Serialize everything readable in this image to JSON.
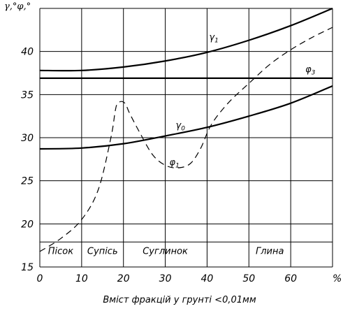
{
  "chart_data": {
    "type": "line",
    "ylabel": "γ,°φ,°",
    "xlabel": "Вміст фракцій у грунті  <0,01мм",
    "x_unit": "%",
    "xlim": [
      0,
      70
    ],
    "ylim": [
      15,
      45
    ],
    "x_ticks": [
      0,
      10,
      20,
      30,
      40,
      50,
      60
    ],
    "y_ticks": [
      15,
      20,
      25,
      30,
      35,
      40
    ],
    "grid": true,
    "soil_zones": [
      {
        "label": "Пісок",
        "x_from": 0,
        "x_to": 10
      },
      {
        "label": "Супісь",
        "x_from": 10,
        "x_to": 20
      },
      {
        "label": "Суглинок",
        "x_from": 20,
        "x_to": 40
      },
      {
        "label": "Глина",
        "x_from": 40,
        "x_to": 70
      }
    ],
    "series": [
      {
        "name": "γ1",
        "label_main": "γ",
        "label_sub": "1",
        "style": "solid",
        "label_at": [
          40.5,
          41.3
        ],
        "points": [
          [
            0,
            37.8
          ],
          [
            10,
            37.8
          ],
          [
            20,
            38.2
          ],
          [
            30,
            38.9
          ],
          [
            40,
            39.9
          ],
          [
            50,
            41.3
          ],
          [
            60,
            43.0
          ],
          [
            70,
            45.0
          ]
        ]
      },
      {
        "name": "φ3",
        "label_main": "φ",
        "label_sub": "3",
        "style": "solid",
        "label_at": [
          63.5,
          37.6
        ],
        "points": [
          [
            0,
            36.9
          ],
          [
            70,
            36.9
          ]
        ]
      },
      {
        "name": "γ0",
        "label_main": "γ",
        "label_sub": "0",
        "style": "solid",
        "label_at": [
          32.5,
          31.1
        ],
        "points": [
          [
            0,
            28.7
          ],
          [
            10,
            28.8
          ],
          [
            20,
            29.3
          ],
          [
            30,
            30.2
          ],
          [
            40,
            31.2
          ],
          [
            50,
            32.5
          ],
          [
            60,
            34.0
          ],
          [
            70,
            36.0
          ]
        ]
      },
      {
        "name": "φ1",
        "label_main": "φ",
        "label_sub": "1",
        "style": "dashed",
        "label_at": [
          31.0,
          26.8
        ],
        "points": [
          [
            0,
            16.8
          ],
          [
            5,
            18.3
          ],
          [
            10,
            20.5
          ],
          [
            14,
            24.0
          ],
          [
            17,
            30.0
          ],
          [
            18,
            33.0
          ],
          [
            18.5,
            33.9
          ],
          [
            19.5,
            34.2
          ],
          [
            20.5,
            33.9
          ],
          [
            21.5,
            32.8
          ],
          [
            24,
            30.5
          ],
          [
            27,
            28.0
          ],
          [
            30,
            26.8
          ],
          [
            33,
            26.5
          ],
          [
            36,
            27.0
          ],
          [
            38.5,
            28.8
          ],
          [
            41,
            31.5
          ],
          [
            45,
            34.0
          ],
          [
            50,
            36.3
          ],
          [
            55,
            38.5
          ],
          [
            60,
            40.2
          ],
          [
            65,
            41.6
          ],
          [
            70,
            42.8
          ]
        ]
      }
    ]
  }
}
